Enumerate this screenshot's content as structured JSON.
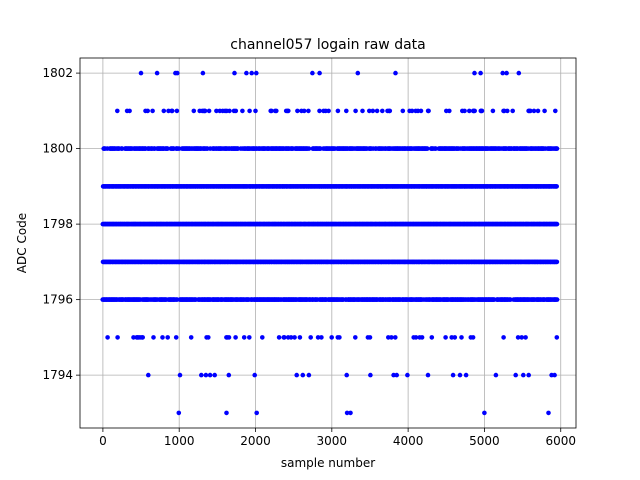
{
  "chart_data": {
    "type": "scatter",
    "title": "channel057 logain raw data",
    "xlabel": "sample number",
    "ylabel": "ADC Code",
    "xlim": [
      -300,
      6200
    ],
    "ylim": [
      1792.6,
      1802.4
    ],
    "xticks": [
      0,
      1000,
      2000,
      3000,
      4000,
      5000,
      6000
    ],
    "yticks": [
      1794,
      1796,
      1798,
      1800,
      1802
    ],
    "grid": true,
    "marker_color": "#0000ff",
    "sample_range": [
      0,
      5950
    ],
    "level_density": {
      "1793": 0.0015,
      "1794": 0.006,
      "1795": 0.09,
      "1796": 0.85,
      "1797": 1.0,
      "1798": 1.0,
      "1799": 1.0,
      "1800": 0.8,
      "1801": 0.12,
      "1802": 0.004
    },
    "sparse_levels": {
      "1793": [
        995,
        1620,
        2015,
        3200,
        3245,
        5000,
        5840
      ],
      "1802": [
        500,
        710,
        950,
        975,
        1310,
        1725,
        1880,
        1950,
        2010,
        2745,
        2840,
        3340,
        3835,
        4870,
        4950,
        5240,
        5290,
        5450
      ],
      "1794": [
        595,
        1010,
        1290,
        1350,
        1405,
        1465,
        1650,
        1990,
        2540,
        2620,
        2700,
        3195,
        3505,
        3810,
        3850,
        3990,
        4260,
        4590,
        4680,
        4760,
        5150,
        5410,
        5510,
        5580,
        5880,
        5920
      ]
    }
  }
}
